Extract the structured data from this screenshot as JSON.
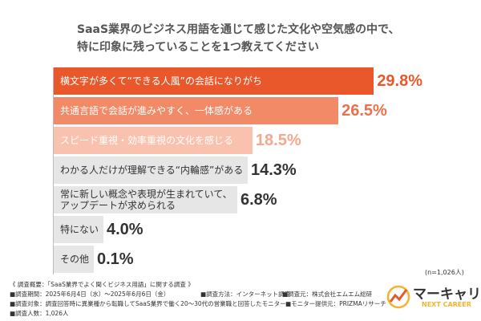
{
  "chart_data": {
    "type": "bar",
    "orientation": "horizontal",
    "title": "SaaS業界のビジネス用語を通じて感じた文化や空気感の中で、\n特に印象に残っていることを1つ教えてください",
    "categories": [
      "横文字が多くて“できる人風”の会話になりがち",
      "共通言語で会話が進みやすく、一体感がある",
      "スピード重視・効率重視の文化を感じる",
      "わかる人だけが理解できる“内輪感”がある",
      "常に新しい概念や表現が生まれていて、\nアップデートが求められる",
      "特にない",
      "その他"
    ],
    "values": [
      29.8,
      26.5,
      18.5,
      14.3,
      6.8,
      4.0,
      0.1
    ],
    "value_labels": [
      "29.8%",
      "26.5%",
      "18.5%",
      "14.3%",
      "6.8%",
      "4.0%",
      "0.1%"
    ],
    "colors": [
      "#e9582b",
      "#f38a67",
      "#f8c2ae",
      "#e6e6e6",
      "#e6e6e6",
      "#e6e6e6",
      "#e6e6e6"
    ],
    "label_colors": [
      "#e9582b",
      "#ec7049",
      "#f5a88c",
      "#333333",
      "#333333",
      "#333333",
      "#333333"
    ],
    "sample_note": "(n=1,026人)",
    "notes": [
      [
        "《 調査概要：「SaaS業界でよく聞くビジネス用語」に関する調査 》"
      ],
      [
        "■調査期間：2025年6月4日（水）〜2025年6月6日（金）",
        "■調査方法：インターネット調査",
        "■調査元：株式会社エムエム総研"
      ],
      [
        "■調査対象：調査回答時に異業種から転職してSaaS業界で働く20〜30代の営業職と回答したモニター",
        "■モニター提供元：PRIZMAリサーチ"
      ],
      [
        "■調査人数：1,026人"
      ]
    ],
    "logo": {
      "name": "マーキャリ",
      "tagline": "NEXT CAREER"
    }
  }
}
